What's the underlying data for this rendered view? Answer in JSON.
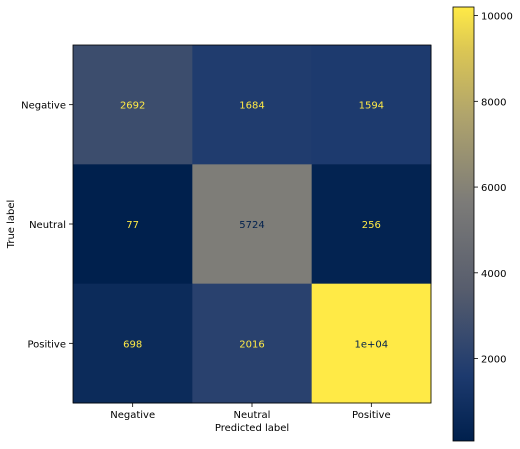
{
  "chart_data": {
    "type": "heatmap",
    "title": "",
    "xlabel": "Predicted label",
    "ylabel": "True label",
    "x_categories": [
      "Negative",
      "Neutral",
      "Positive"
    ],
    "y_categories": [
      "Negative",
      "Neutral",
      "Positive"
    ],
    "values": [
      [
        2692,
        1684,
        1594
      ],
      [
        77,
        5724,
        256
      ],
      [
        698,
        2016,
        10200
      ]
    ],
    "cell_labels": [
      [
        "2692",
        "1684",
        "1594"
      ],
      [
        "77",
        "5724",
        "256"
      ],
      [
        "698",
        "2016",
        "1e+04"
      ]
    ],
    "colormap": "cividis",
    "colorbar": {
      "range": [
        77,
        10200
      ],
      "ticks": [
        2000,
        4000,
        6000,
        8000,
        10000
      ],
      "tick_labels": [
        "2000",
        "4000",
        "6000",
        "8000",
        "10000"
      ]
    },
    "grid": false,
    "legend": "none"
  }
}
